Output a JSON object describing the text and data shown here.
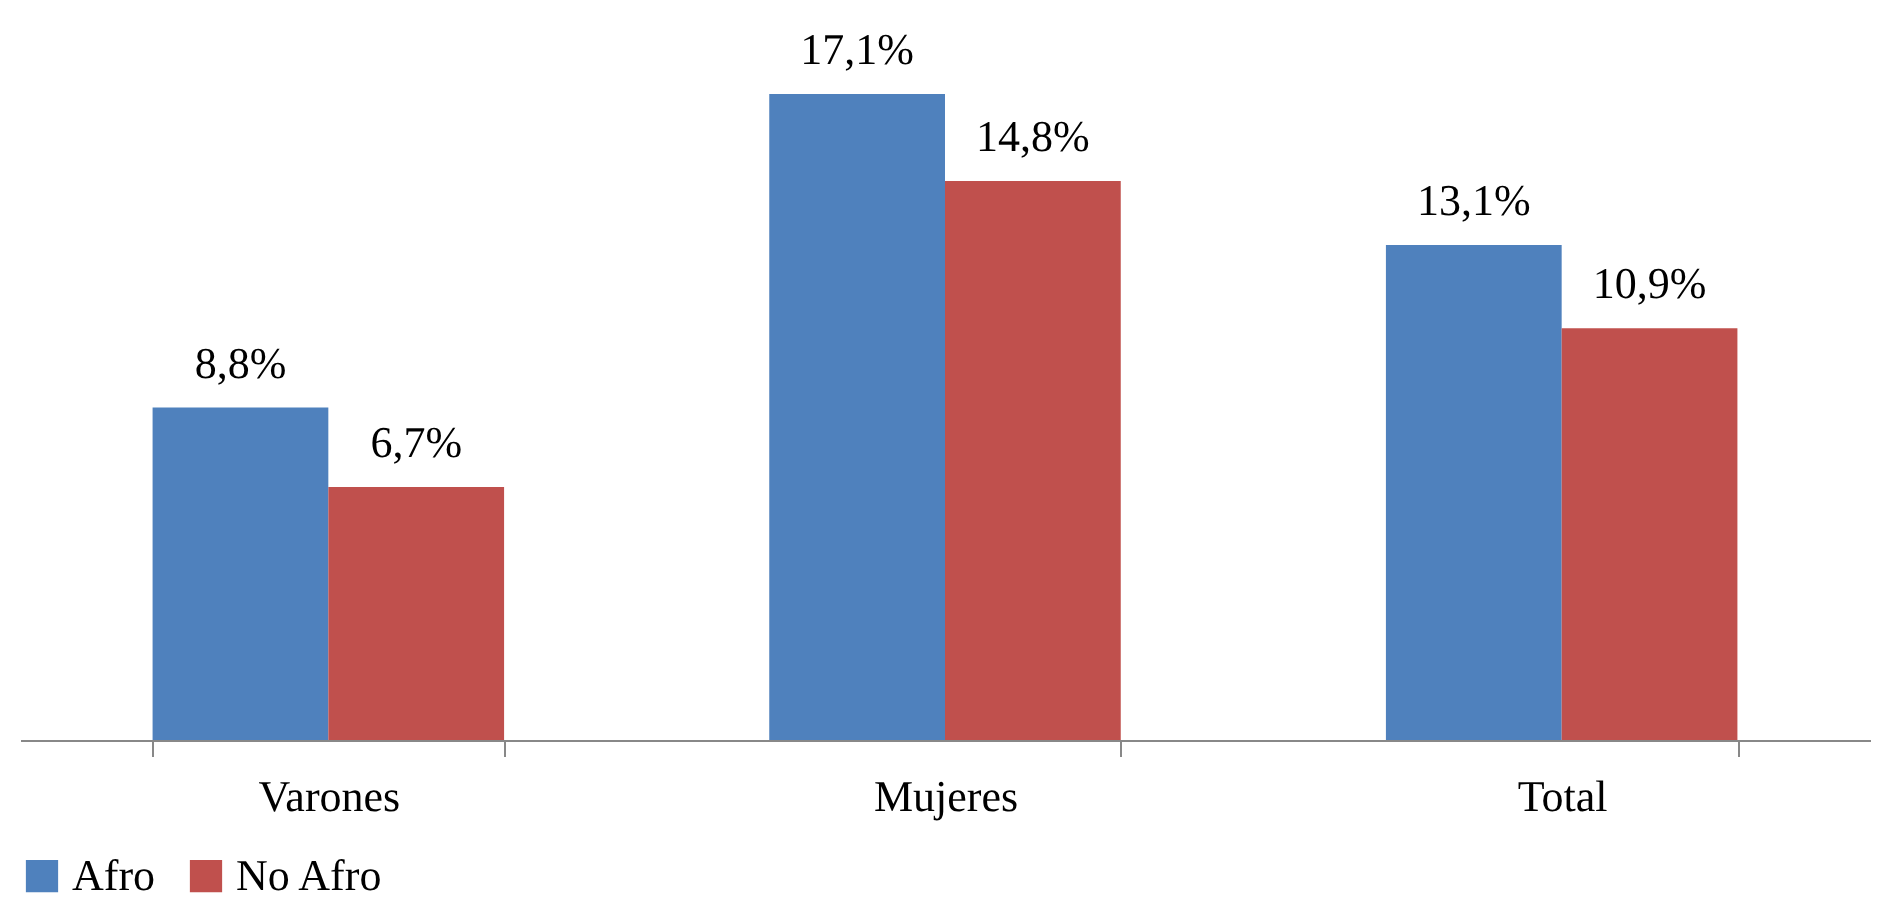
{
  "chart_data": {
    "type": "bar",
    "categories": [
      "Varones",
      "Mujeres",
      "Total"
    ],
    "series": [
      {
        "name": "Afro",
        "color": "#4f81bd",
        "values": [
          8.8,
          17.1,
          13.1
        ],
        "value_labels": [
          "8,8%",
          "17,1%",
          "13,1%"
        ]
      },
      {
        "name": "No Afro",
        "color": "#c0504d",
        "values": [
          6.7,
          14.8,
          10.9
        ],
        "value_labels": [
          "6,7%",
          "14,8%",
          "10,9%"
        ]
      }
    ],
    "legend": "bottom",
    "grid": false
  }
}
